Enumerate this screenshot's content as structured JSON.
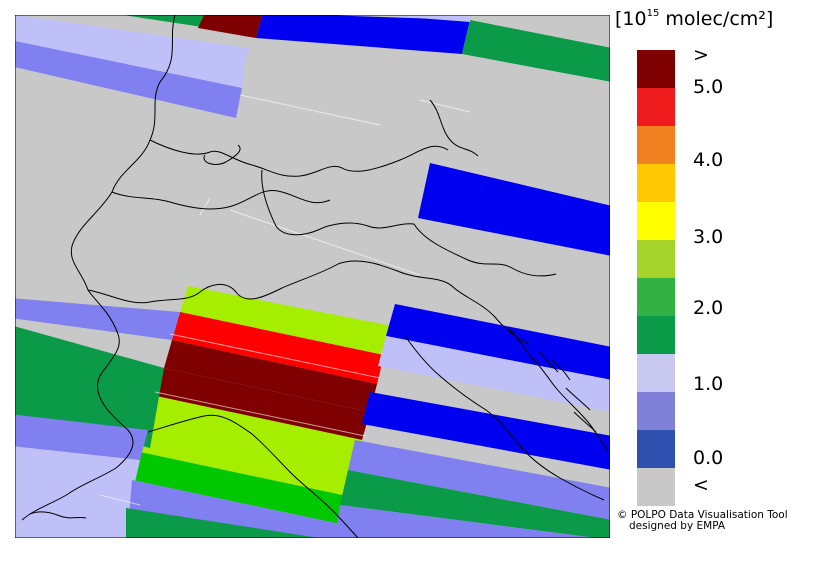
{
  "legend": {
    "title_prefix": "[10",
    "title_exp": "15",
    "title_suffix": " molec/cm²]",
    "bins": [
      {
        "color": "#7f0000"
      },
      {
        "color": "#ee1c1c"
      },
      {
        "color": "#f08020"
      },
      {
        "color": "#ffc800"
      },
      {
        "color": "#ffff00"
      },
      {
        "color": "#a6d22c"
      },
      {
        "color": "#33b243"
      },
      {
        "color": "#0a9a48"
      },
      {
        "color": "#c8c8f0"
      },
      {
        "color": "#8080d8"
      },
      {
        "color": "#3050b0"
      },
      {
        "color": "#c8c8c8"
      }
    ],
    "ticks": [
      ">",
      "5.0",
      "4.0",
      "3.0",
      "2.0",
      "1.0",
      "0.0",
      "<"
    ]
  },
  "credit": {
    "line1": "© POLPO Data Visualisation Tool",
    "line2": "designed by EMPA"
  },
  "map_colors": {
    "background": "#c8c8c8",
    "below": "#c8c8c8",
    "dark_red": "#7f0000",
    "red": "#ff0000",
    "yellow_green": "#a6ee00",
    "green": "#00c800",
    "dark_green": "#0a9a48",
    "light_violet": "#c0c0f8",
    "violet": "#8080f0",
    "blue": "#0000f0"
  }
}
